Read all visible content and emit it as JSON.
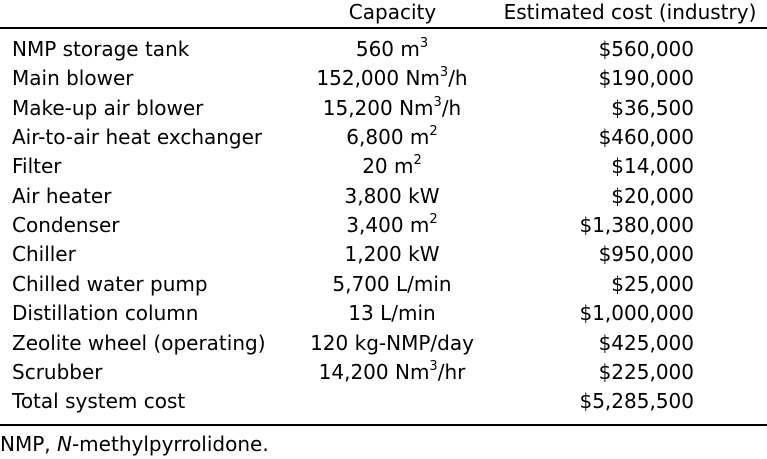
{
  "header": {
    "capacity_label": "Capacity",
    "cost_label": "Estimated cost (industry)"
  },
  "rows": [
    {
      "item": "NMP storage tank",
      "cap_pre": "560 m",
      "cap_sup": "3",
      "cap_post": "",
      "cost": "$560,000"
    },
    {
      "item": "Main blower",
      "cap_pre": "152,000 Nm",
      "cap_sup": "3",
      "cap_post": "/h",
      "cost": "$190,000"
    },
    {
      "item": "Make-up air blower",
      "cap_pre": "15,200 Nm",
      "cap_sup": "3",
      "cap_post": "/h",
      "cost": "$36,500"
    },
    {
      "item": "Air-to-air heat exchanger",
      "cap_pre": "6,800 m",
      "cap_sup": "2",
      "cap_post": "",
      "cost": "$460,000"
    },
    {
      "item": "Filter",
      "cap_pre": "20 m",
      "cap_sup": "2",
      "cap_post": "",
      "cost": "$14,000"
    },
    {
      "item": "Air heater",
      "cap_pre": "3,800 kW",
      "cap_sup": "",
      "cap_post": "",
      "cost": "$20,000"
    },
    {
      "item": "Condenser",
      "cap_pre": "3,400 m",
      "cap_sup": "2",
      "cap_post": "",
      "cost": "$1,380,000"
    },
    {
      "item": "Chiller",
      "cap_pre": "1,200 kW",
      "cap_sup": "",
      "cap_post": "",
      "cost": "$950,000"
    },
    {
      "item": "Chilled water pump",
      "cap_pre": "5,700 L/min",
      "cap_sup": "",
      "cap_post": "",
      "cost": "$25,000"
    },
    {
      "item": "Distillation column",
      "cap_pre": "13 L/min",
      "cap_sup": "",
      "cap_post": "",
      "cost": "$1,000,000"
    },
    {
      "item": "Zeolite wheel (operating)",
      "cap_pre": "120 kg-NMP/day",
      "cap_sup": "",
      "cap_post": "",
      "cost": "$425,000"
    },
    {
      "item": "Scrubber",
      "cap_pre": "14,200 Nm",
      "cap_sup": "3",
      "cap_post": "/hr",
      "cost": "$225,000"
    },
    {
      "item": "Total system cost",
      "cap_pre": "",
      "cap_sup": "",
      "cap_post": "",
      "cost": "$5,285,500"
    }
  ],
  "footnote": {
    "abbr": "NMP, ",
    "term_italic": "N",
    "term_rest": "-methylpyrrolidone."
  }
}
